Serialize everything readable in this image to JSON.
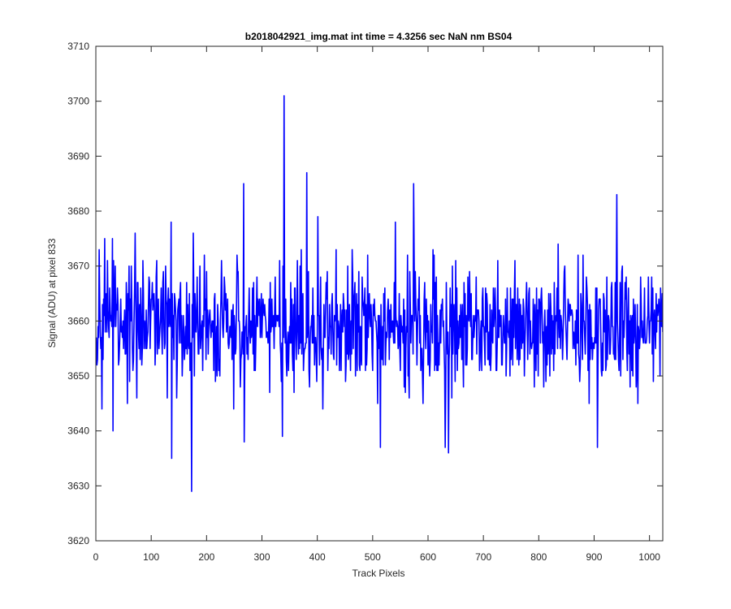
{
  "chart_data": {
    "type": "line",
    "title": "b2018042921_img.mat int time = 4.3256 sec  NaN nm BS04",
    "xlabel": "Track Pixels",
    "ylabel": "Signal (ADU) at pixel 833",
    "xlim": [
      0,
      1024
    ],
    "ylim": [
      3620,
      3710
    ],
    "xticks": [
      0,
      100,
      200,
      300,
      400,
      500,
      600,
      700,
      800,
      900,
      1000
    ],
    "yticks": [
      3620,
      3630,
      3640,
      3650,
      3660,
      3670,
      3680,
      3690,
      3700,
      3710
    ],
    "grid": false,
    "box": true,
    "series": [
      {
        "color": "#0000ff",
        "n_points": 1024,
        "mean": 3659,
        "noise_range": [
          3643,
          3675
        ],
        "notable_points": [
          {
            "x": 5,
            "y": 3673
          },
          {
            "x": 10,
            "y": 3644
          },
          {
            "x": 15,
            "y": 3675
          },
          {
            "x": 29,
            "y": 3675
          },
          {
            "x": 30,
            "y": 3640
          },
          {
            "x": 70,
            "y": 3676
          },
          {
            "x": 135,
            "y": 3678
          },
          {
            "x": 136,
            "y": 3635
          },
          {
            "x": 172,
            "y": 3629
          },
          {
            "x": 175,
            "y": 3676
          },
          {
            "x": 266,
            "y": 3685
          },
          {
            "x": 267,
            "y": 3638
          },
          {
            "x": 336,
            "y": 3639
          },
          {
            "x": 339,
            "y": 3701
          },
          {
            "x": 380,
            "y": 3687
          },
          {
            "x": 400,
            "y": 3679
          },
          {
            "x": 513,
            "y": 3637
          },
          {
            "x": 540,
            "y": 3678
          },
          {
            "x": 573,
            "y": 3685
          },
          {
            "x": 630,
            "y": 3637
          },
          {
            "x": 636,
            "y": 3636
          },
          {
            "x": 905,
            "y": 3637
          },
          {
            "x": 940,
            "y": 3683
          }
        ]
      }
    ]
  }
}
